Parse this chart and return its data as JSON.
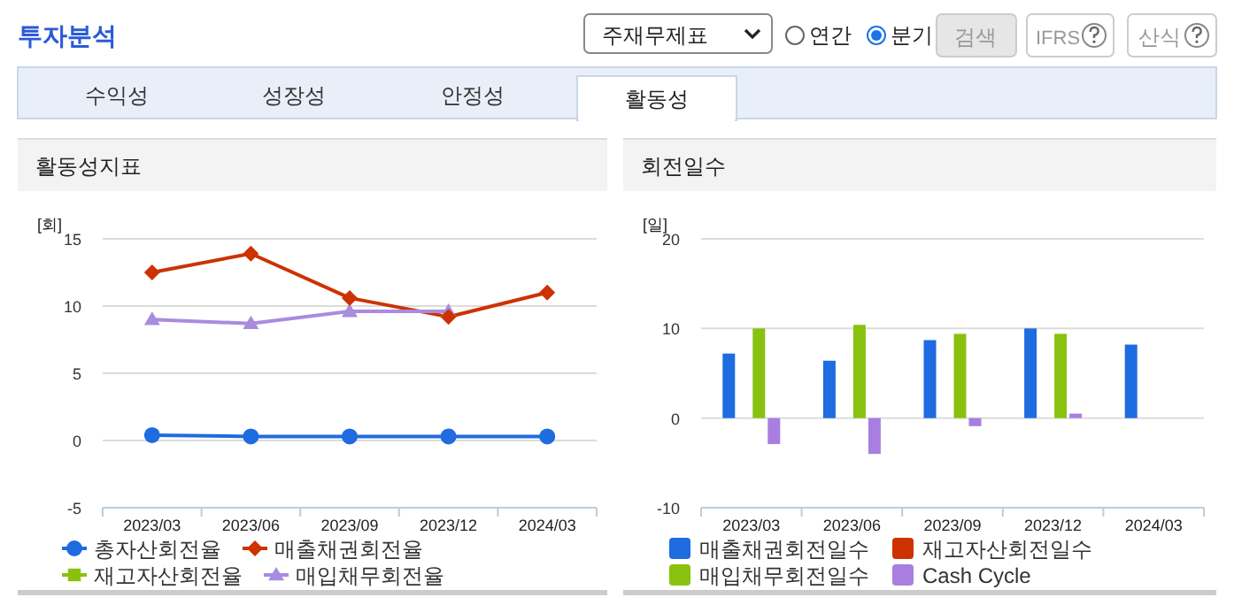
{
  "chart_data": [
    {
      "type": "other",
      "annotations": [
        "투자분석",
        "주재무제표",
        "연간",
        "분기",
        "검색",
        "IFRS",
        "산식",
        "수익성",
        "성장성",
        "안정성",
        "활동성"
      ]
    },
    {
      "type": "line",
      "title": "활동성지표",
      "ylabel": "[회]",
      "categories": [
        "2023/03",
        "2023/06",
        "2023/09",
        "2023/12",
        "2024/03"
      ],
      "ylim": [
        -5,
        15
      ],
      "yticks": [
        -5,
        0,
        5,
        10,
        15
      ],
      "grid": "y",
      "legend": "bottom",
      "series": [
        {
          "name": "총자산회전율",
          "color": "#1f6be0",
          "marker": "circle",
          "values": [
            0.4,
            0.3,
            0.3,
            0.3,
            0.3
          ]
        },
        {
          "name": "매출채권회전율",
          "color": "#cc3300",
          "marker": "diamond",
          "values": [
            12.5,
            13.9,
            10.6,
            9.2,
            11.0
          ]
        },
        {
          "name": "재고자산회전율",
          "color": "#88c20e",
          "marker": "square",
          "values": [
            null,
            null,
            null,
            null,
            null
          ]
        },
        {
          "name": "매입채무회전율",
          "color": "#a98be0",
          "marker": "triangle",
          "values": [
            9.0,
            8.7,
            9.6,
            9.6,
            null
          ]
        }
      ]
    },
    {
      "type": "bar",
      "title": "회전일수",
      "ylabel": "[일]",
      "categories": [
        "2023/03",
        "2023/06",
        "2023/09",
        "2023/12",
        "2024/03"
      ],
      "ylim": [
        -10,
        20
      ],
      "yticks": [
        -10,
        0,
        10,
        20
      ],
      "grid": "y",
      "legend": "bottom",
      "series": [
        {
          "name": "매출채권회전일수",
          "color": "#1f6be0",
          "values": [
            7.2,
            6.4,
            8.7,
            10.0,
            8.2
          ]
        },
        {
          "name": "재고자산회전일수",
          "color": "#cc3300",
          "values": [
            null,
            null,
            null,
            null,
            null
          ]
        },
        {
          "name": "매입채무회전일수",
          "color": "#88c20e",
          "values": [
            10.0,
            10.4,
            9.4,
            9.4,
            null
          ]
        },
        {
          "name": "Cash Cycle",
          "color": "#a87fe0",
          "values": [
            -2.9,
            -4.0,
            -0.9,
            0.5,
            null
          ]
        }
      ]
    }
  ]
}
